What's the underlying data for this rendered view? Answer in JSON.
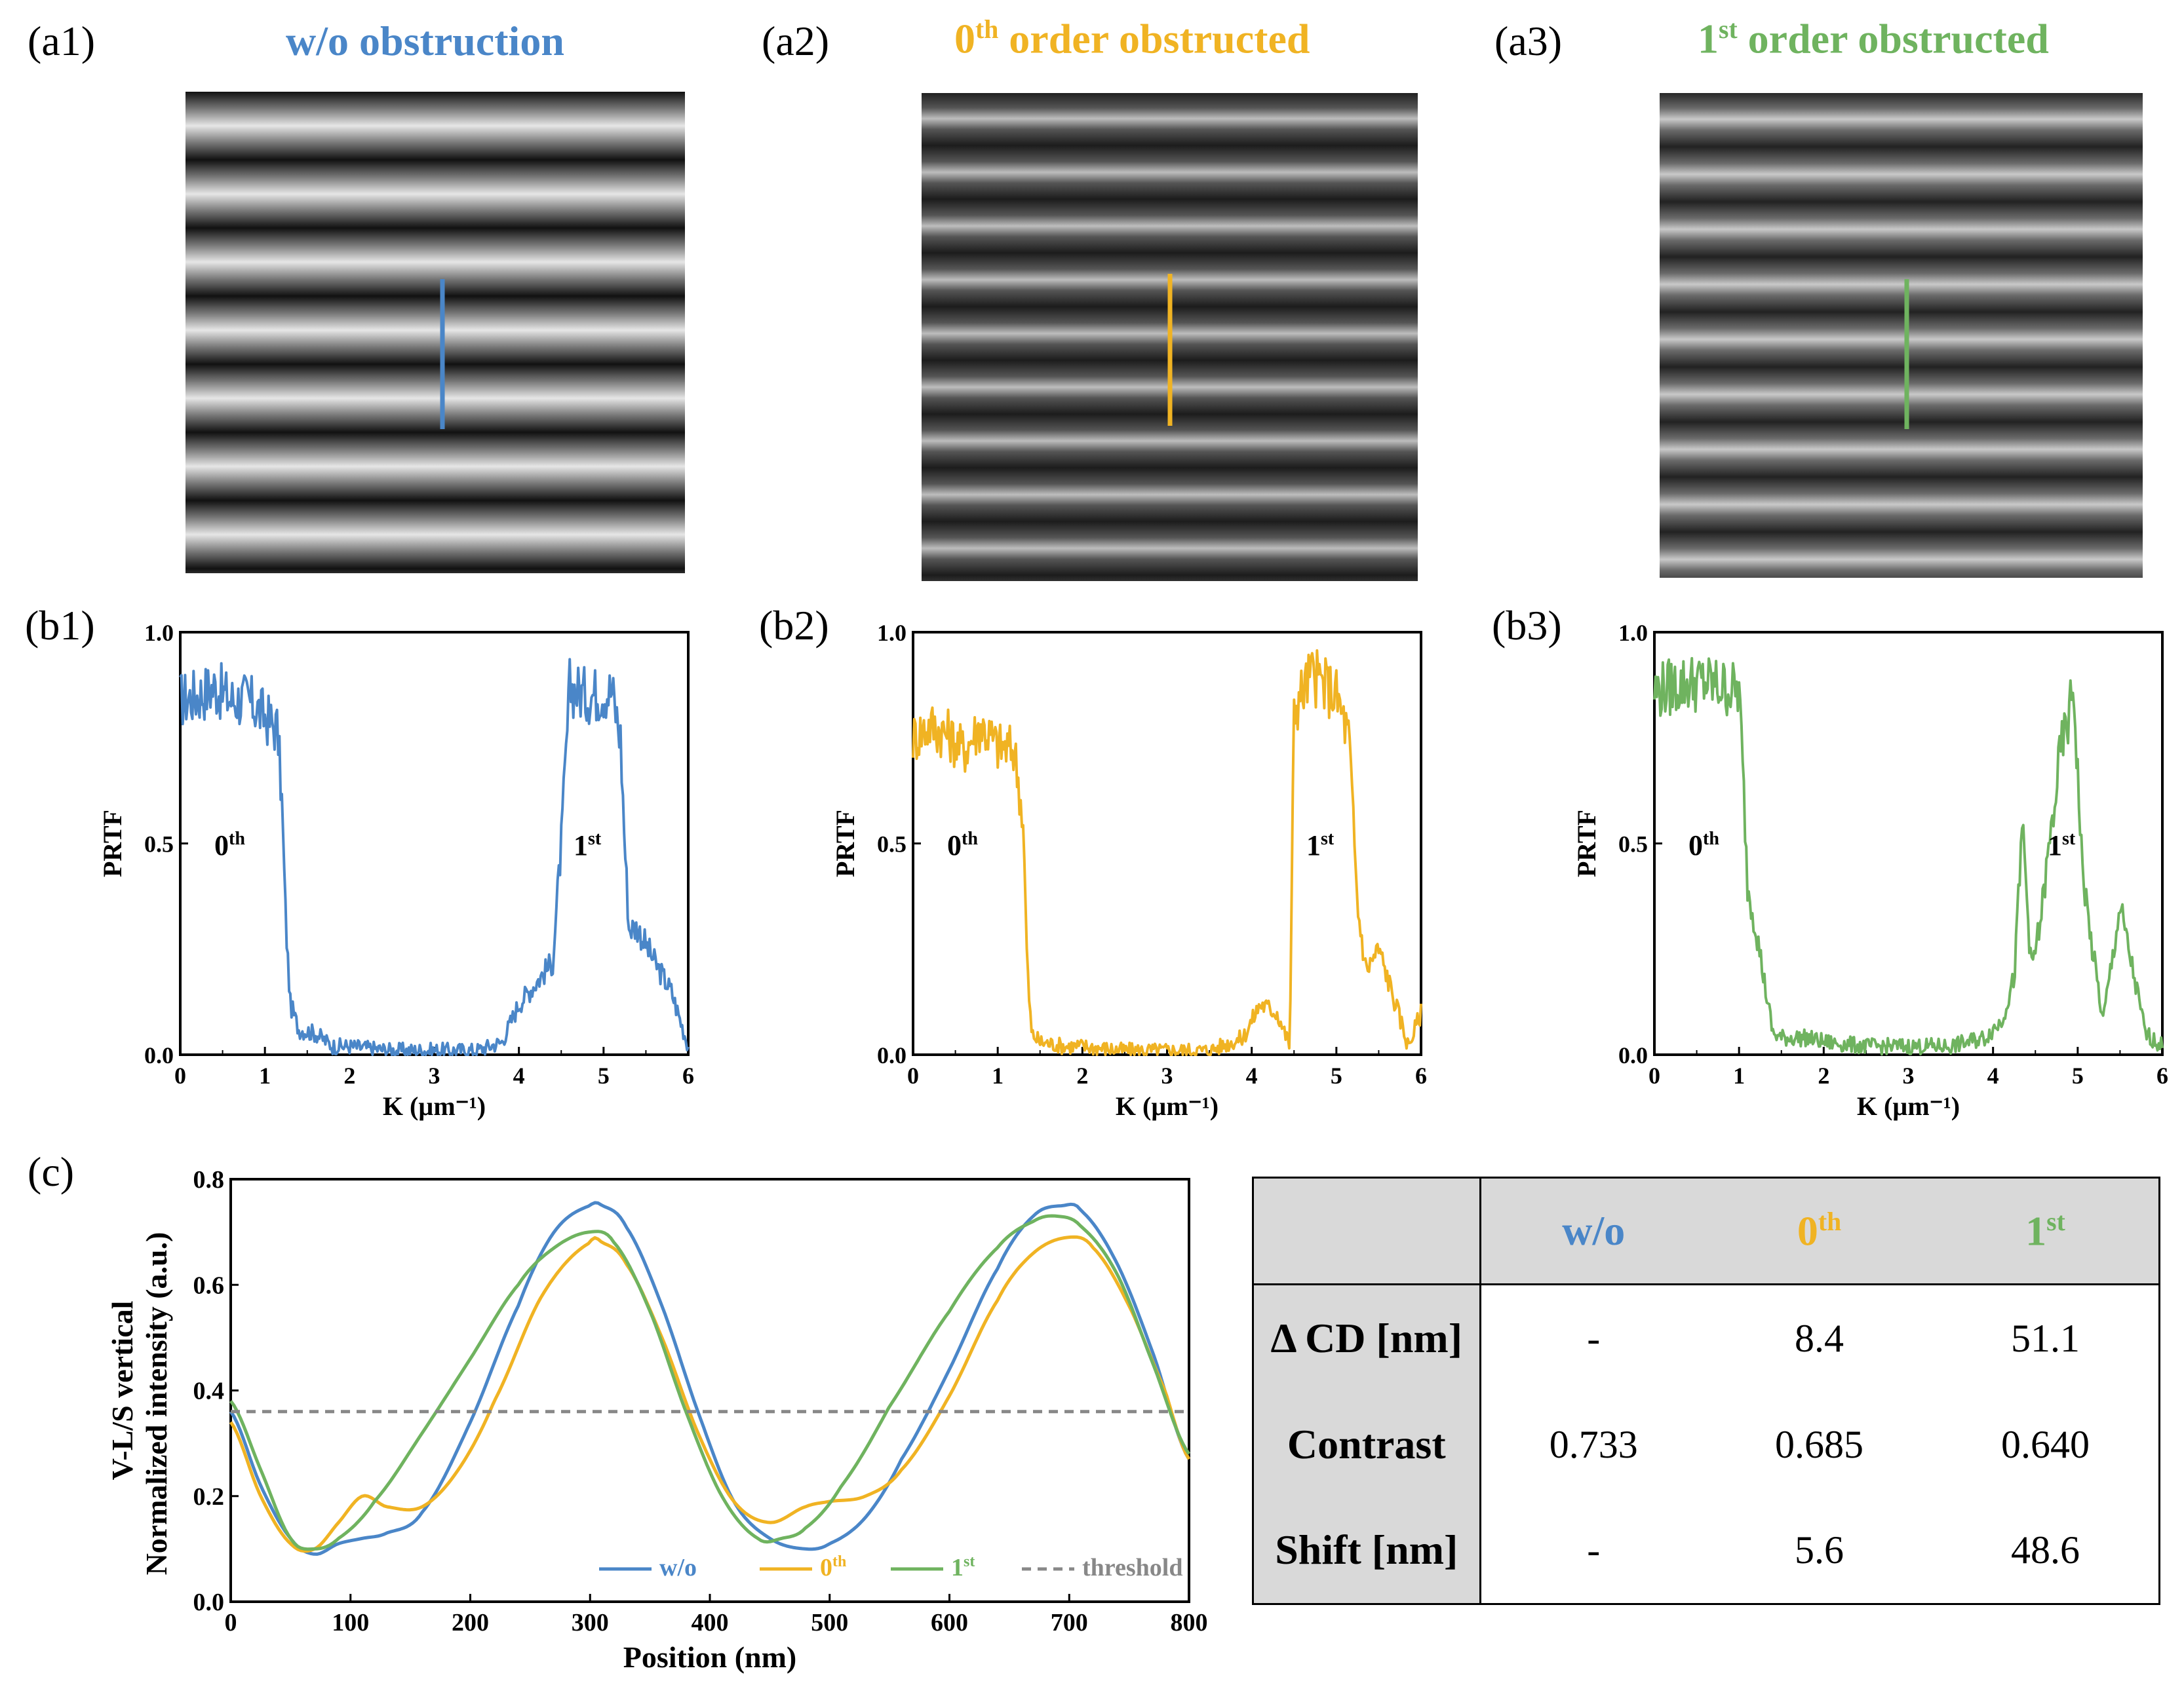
{
  "figure": {
    "panels_a": [
      {
        "label": "(a1)",
        "title_main": "w/o obstruction",
        "title_sup": "",
        "color": "#4a86c8"
      },
      {
        "label": "(a2)",
        "title_main": "0",
        "title_sup": "th",
        "title_rest": " order obstructed",
        "color": "#f0b323"
      },
      {
        "label": "(a3)",
        "title_main": "1",
        "title_sup": "st",
        "title_rest": " order obstructed",
        "color": "#6fb35f"
      }
    ],
    "panels_b": [
      {
        "label": "(b1)"
      },
      {
        "label": "(b2)"
      },
      {
        "label": "(b3)"
      }
    ],
    "panel_c": {
      "label": "(c)"
    }
  },
  "colors": {
    "wo": "#4a86c8",
    "zero": "#f0b323",
    "first": "#6fb35f",
    "threshold": "#888888"
  },
  "chart_data": [
    {
      "type": "line",
      "id": "b1",
      "xlabel": "K (µm⁻¹)",
      "ylabel": "PRTF",
      "xlim": [
        0,
        6
      ],
      "ylim": [
        0,
        1.0
      ],
      "xticks": [
        "0",
        "1",
        "2",
        "3",
        "4",
        "5",
        "6"
      ],
      "yticks": [
        "0.0",
        "0.5",
        "1.0"
      ],
      "annotations": [
        {
          "text": "0",
          "sup": "th"
        },
        {
          "text": "1",
          "sup": "st"
        }
      ],
      "series": [
        {
          "color": "#4a86c8",
          "x": [
            0,
            0.2,
            0.4,
            0.6,
            0.8,
            1.0,
            1.15,
            1.2,
            1.25,
            1.3,
            1.4,
            1.6,
            1.8,
            2.0,
            2.5,
            3.0,
            3.5,
            3.8,
            4.0,
            4.2,
            4.4,
            4.5,
            4.6,
            4.8,
            5.0,
            5.1,
            5.2,
            5.25,
            5.3,
            5.4,
            5.6,
            5.8,
            6.0
          ],
          "y": [
            0.84,
            0.85,
            0.87,
            0.84,
            0.84,
            0.8,
            0.77,
            0.6,
            0.3,
            0.12,
            0.06,
            0.05,
            0.02,
            0.02,
            0.01,
            0.01,
            0.01,
            0.03,
            0.12,
            0.17,
            0.22,
            0.5,
            0.87,
            0.85,
            0.86,
            0.86,
            0.75,
            0.5,
            0.3,
            0.3,
            0.22,
            0.15,
            0.02
          ]
        }
      ]
    },
    {
      "type": "line",
      "id": "b2",
      "xlabel": "K (µm⁻¹)",
      "ylabel": "PRTF",
      "xlim": [
        0,
        6
      ],
      "ylim": [
        0,
        1.0
      ],
      "xticks": [
        "0",
        "1",
        "2",
        "3",
        "4",
        "5",
        "6"
      ],
      "yticks": [
        "0.0",
        "0.5",
        "1.0"
      ],
      "annotations": [
        {
          "text": "0",
          "sup": "th"
        },
        {
          "text": "1",
          "sup": "st"
        }
      ],
      "series": [
        {
          "color": "#f0b323",
          "x": [
            0,
            0.2,
            0.4,
            0.6,
            0.8,
            1.0,
            1.2,
            1.3,
            1.35,
            1.4,
            1.5,
            1.8,
            2.0,
            2.5,
            3.0,
            3.5,
            3.9,
            4.1,
            4.3,
            4.45,
            4.5,
            4.7,
            4.9,
            5.0,
            5.15,
            5.25,
            5.35,
            5.5,
            5.7,
            5.85,
            6.0
          ],
          "y": [
            0.75,
            0.78,
            0.76,
            0.72,
            0.78,
            0.73,
            0.72,
            0.55,
            0.2,
            0.05,
            0.03,
            0.02,
            0.02,
            0.01,
            0.01,
            0.01,
            0.04,
            0.12,
            0.1,
            0.02,
            0.82,
            0.9,
            0.87,
            0.85,
            0.75,
            0.35,
            0.2,
            0.25,
            0.12,
            0.02,
            0.1
          ]
        }
      ]
    },
    {
      "type": "line",
      "id": "b3",
      "xlabel": "K (µm⁻¹)",
      "ylabel": "PRTF",
      "xlim": [
        0,
        6
      ],
      "ylim": [
        0,
        1.0
      ],
      "xticks": [
        "0",
        "1",
        "2",
        "3",
        "4",
        "5",
        "6"
      ],
      "yticks": [
        "0.0",
        "0.5",
        "1.0"
      ],
      "annotations": [
        {
          "text": "0",
          "sup": "th"
        },
        {
          "text": "1",
          "sup": "st"
        }
      ],
      "series": [
        {
          "color": "#6fb35f",
          "x": [
            0,
            0.2,
            0.4,
            0.6,
            0.8,
            1.0,
            1.05,
            1.1,
            1.2,
            1.3,
            1.4,
            1.5,
            1.8,
            2.0,
            2.5,
            3.0,
            3.5,
            3.9,
            4.1,
            4.25,
            4.35,
            4.45,
            4.55,
            4.7,
            4.8,
            4.9,
            4.95,
            5.05,
            5.15,
            5.3,
            5.5,
            5.6,
            5.8,
            6.0
          ],
          "y": [
            0.86,
            0.87,
            0.88,
            0.88,
            0.87,
            0.86,
            0.65,
            0.4,
            0.3,
            0.17,
            0.05,
            0.04,
            0.04,
            0.03,
            0.02,
            0.02,
            0.02,
            0.04,
            0.08,
            0.18,
            0.55,
            0.2,
            0.3,
            0.55,
            0.72,
            0.8,
            0.88,
            0.45,
            0.28,
            0.08,
            0.35,
            0.25,
            0.05,
            0.02
          ]
        }
      ]
    },
    {
      "type": "line",
      "id": "c",
      "xlabel": "Position (nm)",
      "ylabel": "V-L/S vertical",
      "ylabel2": "Normalized intensity (a.u.)",
      "xlim": [
        0,
        800
      ],
      "ylim": [
        0,
        0.8
      ],
      "xticks": [
        "0",
        "100",
        "200",
        "300",
        "400",
        "500",
        "600",
        "700",
        "800"
      ],
      "yticks": [
        "0.0",
        "0.2",
        "0.4",
        "0.6",
        "0.8"
      ],
      "legend": "bottom-right",
      "series": [
        {
          "name": "w/o",
          "color": "#4a86c8",
          "x": [
            0,
            25,
            50,
            70,
            90,
            110,
            130,
            160,
            200,
            240,
            270,
            300,
            310,
            330,
            360,
            390,
            420,
            450,
            480,
            500,
            530,
            560,
            600,
            640,
            670,
            695,
            710,
            740,
            770,
            800
          ],
          "y": [
            0.36,
            0.22,
            0.12,
            0.09,
            0.11,
            0.12,
            0.13,
            0.17,
            0.34,
            0.56,
            0.7,
            0.75,
            0.75,
            0.71,
            0.56,
            0.36,
            0.19,
            0.12,
            0.1,
            0.11,
            0.16,
            0.27,
            0.44,
            0.63,
            0.73,
            0.75,
            0.74,
            0.64,
            0.47,
            0.27
          ]
        },
        {
          "name": "0",
          "name_sup": "th",
          "color": "#f0b323",
          "x": [
            0,
            25,
            50,
            70,
            90,
            110,
            130,
            160,
            190,
            220,
            260,
            300,
            310,
            330,
            360,
            390,
            420,
            450,
            480,
            500,
            530,
            560,
            600,
            640,
            670,
            700,
            720,
            750,
            780,
            800
          ],
          "y": [
            0.34,
            0.2,
            0.11,
            0.1,
            0.15,
            0.2,
            0.18,
            0.18,
            0.25,
            0.38,
            0.58,
            0.68,
            0.68,
            0.64,
            0.5,
            0.32,
            0.19,
            0.15,
            0.18,
            0.19,
            0.2,
            0.25,
            0.39,
            0.57,
            0.66,
            0.69,
            0.67,
            0.56,
            0.4,
            0.27
          ]
        },
        {
          "name": "1",
          "name_sup": "st",
          "color": "#6fb35f",
          "x": [
            0,
            25,
            50,
            70,
            90,
            120,
            160,
            200,
            240,
            270,
            300,
            320,
            350,
            380,
            410,
            440,
            460,
            480,
            510,
            550,
            600,
            640,
            670,
            690,
            710,
            740,
            770,
            800
          ],
          "y": [
            0.38,
            0.25,
            0.12,
            0.1,
            0.12,
            0.19,
            0.32,
            0.46,
            0.6,
            0.67,
            0.7,
            0.68,
            0.55,
            0.36,
            0.2,
            0.12,
            0.12,
            0.14,
            0.22,
            0.37,
            0.55,
            0.67,
            0.72,
            0.73,
            0.71,
            0.62,
            0.45,
            0.28
          ]
        },
        {
          "name": "threshold",
          "color": "#888888",
          "dashed": true,
          "x": [
            0,
            800
          ],
          "y": [
            0.36,
            0.36
          ]
        }
      ]
    }
  ],
  "table": {
    "headers": [
      {
        "main": "",
        "sup": ""
      },
      {
        "main": "w/o",
        "sup": "",
        "color": "#4a86c8"
      },
      {
        "main": "0",
        "sup": "th",
        "color": "#f0b323"
      },
      {
        "main": "1",
        "sup": "st",
        "color": "#6fb35f"
      }
    ],
    "rows": [
      {
        "label": "Δ CD [nm]",
        "values": [
          "-",
          "8.4",
          "51.1"
        ]
      },
      {
        "label": "Contrast",
        "values": [
          "0.733",
          "0.685",
          "0.640"
        ]
      },
      {
        "label": "Shift [nm]",
        "values": [
          "-",
          "5.6",
          "48.6"
        ]
      }
    ]
  }
}
